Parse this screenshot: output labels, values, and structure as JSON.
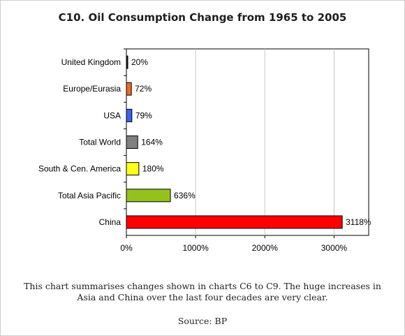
{
  "chart_data": {
    "type": "bar",
    "orientation": "horizontal",
    "title": "C10. Oil Consumption Change from 1965 to 2005",
    "categories": [
      "United Kingdom",
      "Europe/Eurasia",
      "USA",
      "Total World",
      "South & Cen. America",
      "Total Asia Pacific",
      "China"
    ],
    "values": [
      20,
      72,
      79,
      164,
      180,
      636,
      3118
    ],
    "data_labels": [
      "20%",
      "72%",
      "79%",
      "164%",
      "180%",
      "636%",
      "3118%"
    ],
    "colors": [
      "#2a1a1a",
      "#f06a24",
      "#3f5ff0",
      "#808080",
      "#ffff1a",
      "#95c11f",
      "#ff0000"
    ],
    "xlim": [
      0,
      3500
    ],
    "xticks": [
      0,
      1000,
      2000,
      3000
    ],
    "xtick_labels": [
      "0%",
      "1000%",
      "2000%",
      "3000%"
    ],
    "xlabel": "",
    "ylabel": "",
    "grid": true
  },
  "caption": "This chart summarises changes shown in charts C6 to C9. The huge increases in Asia and China over the last four decades are very clear.",
  "source": "Source: BP"
}
